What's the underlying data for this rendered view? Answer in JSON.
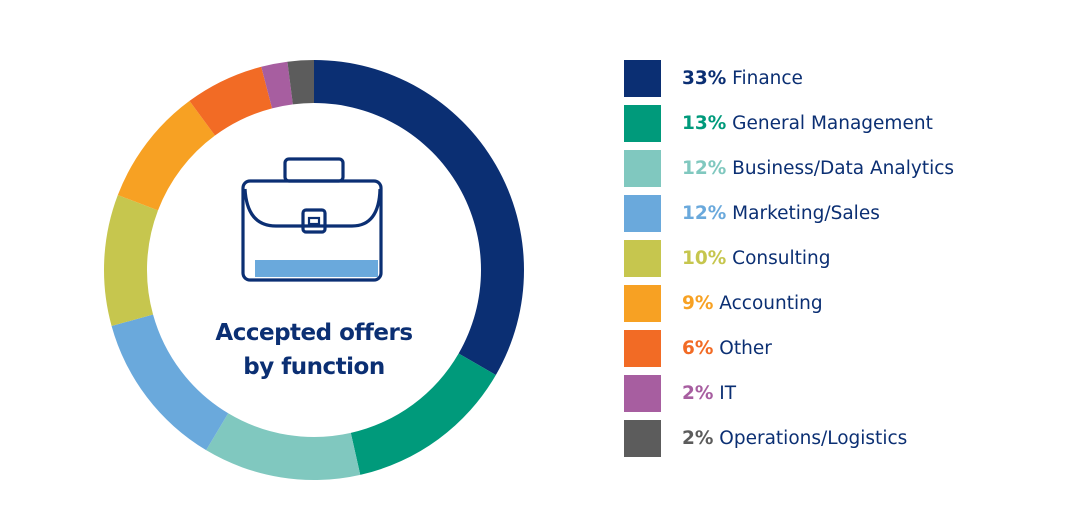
{
  "chart_data": {
    "type": "pie",
    "subtype": "donut",
    "title": "Accepted offers by function",
    "title_lines": [
      "Accepted offers",
      "by function"
    ],
    "center_icon": "briefcase-icon",
    "legend_position": "right",
    "slices": [
      {
        "label": "Finance",
        "value": 33,
        "pct_label": "33%",
        "color": "#0b2f73"
      },
      {
        "label": "General Management",
        "value": 13,
        "pct_label": "13%",
        "color": "#009a7b"
      },
      {
        "label": "Business/Data Analytics",
        "value": 12,
        "pct_label": "12%",
        "color": "#80c8bf"
      },
      {
        "label": "Marketing/Sales",
        "value": 12,
        "pct_label": "12%",
        "color": "#6aa9dc"
      },
      {
        "label": "Consulting",
        "value": 10,
        "pct_label": "10%",
        "color": "#c6c64e"
      },
      {
        "label": "Accounting",
        "value": 9,
        "pct_label": "9%",
        "color": "#f7a123"
      },
      {
        "label": "Other",
        "value": 6,
        "pct_label": "6%",
        "color": "#f26b25"
      },
      {
        "label": "IT",
        "value": 2,
        "pct_label": "2%",
        "color": "#a75ea0"
      },
      {
        "label": "Operations/Logistics",
        "value": 2,
        "pct_label": "2%",
        "color": "#5c5c5c"
      }
    ]
  }
}
